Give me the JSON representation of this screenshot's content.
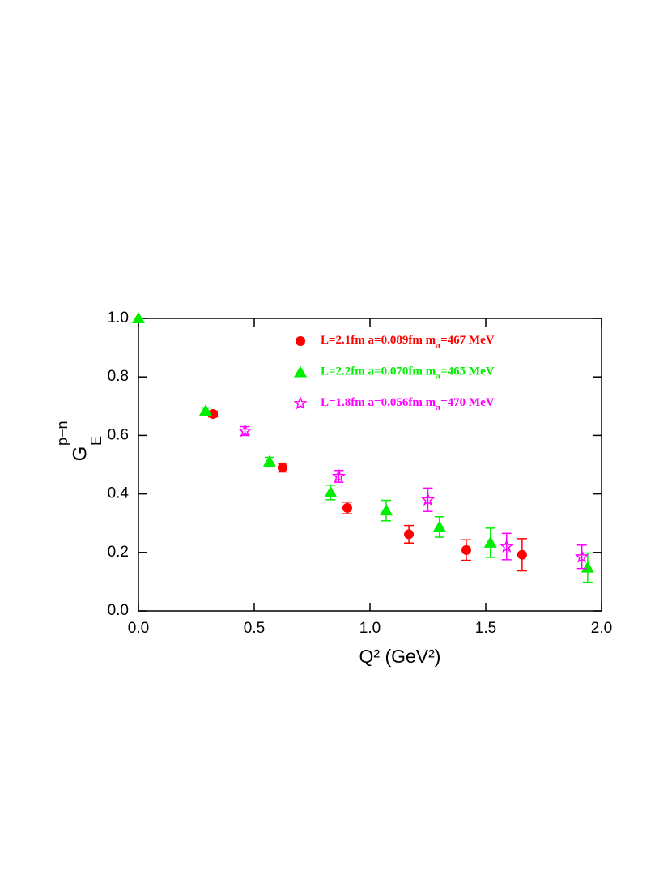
{
  "chart_data": {
    "type": "scatter",
    "xlabel": "Q² (GeV²)",
    "ylabel": "G",
    "ylabel_sup": "p−n",
    "ylabel_sub": "E",
    "xlim": [
      0,
      2
    ],
    "ylim": [
      0,
      1
    ],
    "xticks": [
      {
        "value": 0,
        "label": "0.0"
      },
      0.5,
      {
        "value": 1,
        "label": "1.0"
      },
      1.5,
      {
        "value": 2,
        "label": "2.0"
      }
    ],
    "yticks": [
      {
        "value": 0,
        "label": "0.0"
      },
      0.2,
      0.4,
      0.6,
      0.8,
      {
        "value": 1,
        "label": "1.0"
      }
    ],
    "series": [
      {
        "name": "L=2.1fm  a=0.089fm  mπ=467  MeV",
        "color": "#ff0000",
        "marker": "circle",
        "x": [
          0.322,
          0.622,
          0.902,
          1.168,
          1.416,
          1.657
        ],
        "values": [
          0.673,
          0.49,
          0.352,
          0.262,
          0.208,
          0.192
        ],
        "errors": [
          0.01,
          0.015,
          0.02,
          0.03,
          0.035,
          0.055
        ]
      },
      {
        "name": "L=2.2fm  a=0.070fm  mπ=465  MeV",
        "color": "#00ee00",
        "marker": "triangle",
        "x": [
          0.0,
          0.29,
          0.566,
          0.83,
          1.07,
          1.3,
          1.52,
          1.94
        ],
        "values": [
          1.0,
          0.684,
          0.51,
          0.405,
          0.343,
          0.287,
          0.233,
          0.148
        ],
        "errors": [
          0.0,
          0.01,
          0.015,
          0.025,
          0.035,
          0.035,
          0.05,
          0.05
        ]
      },
      {
        "name": "L=1.8fm  a=0.056fm  mπ=470  MeV",
        "color": "#ff00ff",
        "marker": "star",
        "x": [
          0.46,
          0.865,
          1.25,
          1.59,
          1.915
        ],
        "values": [
          0.615,
          0.46,
          0.38,
          0.22,
          0.185
        ],
        "errors": [
          0.015,
          0.02,
          0.04,
          0.045,
          0.04
        ]
      }
    ]
  }
}
